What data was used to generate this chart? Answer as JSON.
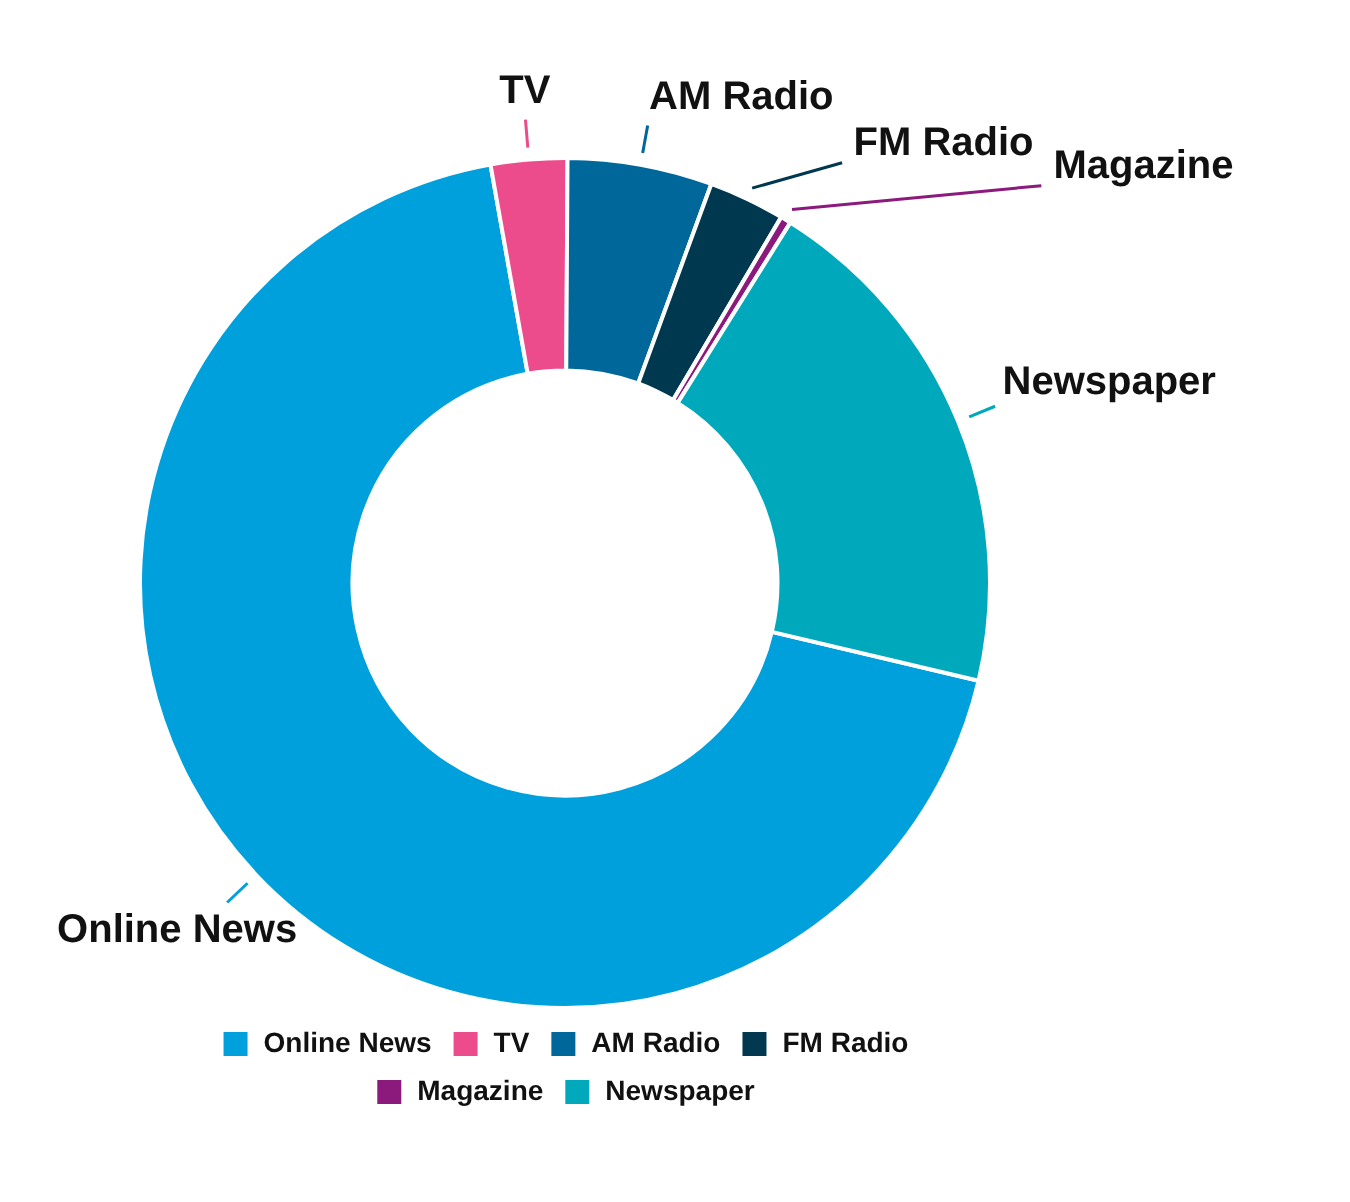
{
  "chart_data": {
    "type": "donut",
    "categories": [
      "Online News",
      "TV",
      "AM Radio",
      "FM Radio",
      "Magazine",
      "Newspaper"
    ],
    "values": [
      68.5,
      2.9,
      5.5,
      2.9,
      0.4,
      19.8
    ],
    "colors": [
      "#00a0dc",
      "#ec4c8c",
      "#00679a",
      "#00384f",
      "#8b1a7c",
      "#00a8bc"
    ],
    "legend": "bottom"
  }
}
